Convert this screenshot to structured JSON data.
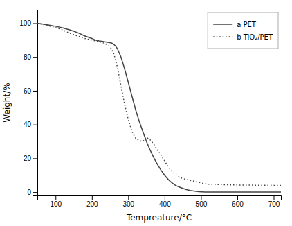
{
  "chart_data": {
    "type": "line",
    "xlabel": "Tempreature/°C",
    "ylabel": "Weight/%",
    "x": [
      50,
      65,
      80,
      100,
      120,
      140,
      160,
      180,
      200,
      210,
      220,
      230,
      240,
      250,
      255,
      260,
      265,
      270,
      280,
      290,
      300,
      310,
      320,
      330,
      340,
      350,
      360,
      370,
      380,
      390,
      400,
      410,
      420,
      430,
      440,
      450,
      460,
      470,
      480,
      490,
      495,
      500,
      505,
      510,
      520,
      540,
      600,
      700,
      720
    ],
    "series": [
      {
        "name": "a PET",
        "color": "#444444",
        "line_style": "solid",
        "values": [
          100,
          99.5,
          99.0,
          98.2,
          97.2,
          96.0,
          94.5,
          92.5,
          91.0,
          90.0,
          89.5,
          89.2,
          88.8,
          88.5,
          88.2,
          87.5,
          86.5,
          85.0,
          80.0,
          73.0,
          65.0,
          57.0,
          49.0,
          42.0,
          36.0,
          30.0,
          25.0,
          20.5,
          16.5,
          13.0,
          10.0,
          7.5,
          5.5,
          4.0,
          3.0,
          2.2,
          1.5,
          1.0,
          0.7,
          0.4,
          0.3,
          0.2,
          0.15,
          0.1,
          0.1,
          0.1,
          0.1,
          0.1,
          0.1
        ]
      },
      {
        "name": "b TiO₂/PET",
        "color": "#444444",
        "line_style": "dotted",
        "values": [
          100,
          99.3,
          98.5,
          97.5,
          96.0,
          94.0,
          92.5,
          91.0,
          90.0,
          89.5,
          89.0,
          88.5,
          87.5,
          86.0,
          84.5,
          82.0,
          78.5,
          74.0,
          63.0,
          52.0,
          43.0,
          36.0,
          32.0,
          30.5,
          30.0,
          32.5,
          31.0,
          28.5,
          25.0,
          22.0,
          18.5,
          15.0,
          12.5,
          10.5,
          9.0,
          8.0,
          7.5,
          7.0,
          6.5,
          6.0,
          5.8,
          5.5,
          5.2,
          5.0,
          4.7,
          4.5,
          4.2,
          4.0,
          4.0
        ]
      }
    ],
    "xlim": [
      50,
      720
    ],
    "ylim": [
      -2,
      108
    ],
    "xticks": [
      100,
      200,
      300,
      400,
      500,
      600,
      700
    ],
    "yticks": [
      0,
      20,
      40,
      60,
      80,
      100
    ],
    "grid": false,
    "legend": "upper right"
  }
}
